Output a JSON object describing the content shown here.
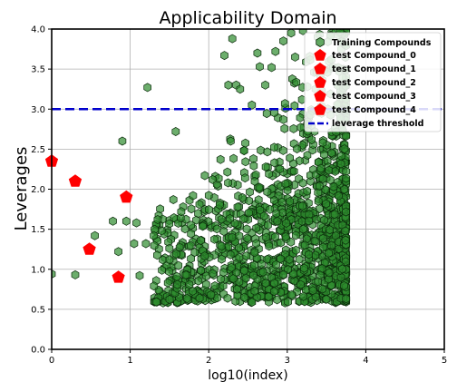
{
  "chart_data": {
    "type": "scatter",
    "title": "Applicability Domain",
    "xlabel": "log10(index)",
    "ylabel": "Leverages",
    "xlim": [
      0,
      5
    ],
    "ylim": [
      0,
      4
    ],
    "x_ticks": [
      "0",
      "1",
      "2",
      "3",
      "4",
      "5"
    ],
    "y_ticks": [
      "0.0",
      "0.5",
      "1.0",
      "1.5",
      "2.0",
      "2.5",
      "3.0",
      "3.5",
      "4.0"
    ],
    "grid": true,
    "legend_position": "top-right",
    "legend": [
      "Training Compounds",
      "test Compound_0",
      "test Compound_1",
      "test Compound_2",
      "test Compound_3",
      "test Compound_4",
      "leverage threshold"
    ],
    "threshold": {
      "name": "leverage threshold",
      "y": 3.0,
      "color": "#0000cc"
    },
    "training": {
      "name": "Training Compounds",
      "color": "#2e8b2e",
      "edge_color": "#0b2a0b",
      "sample_points": [
        [
          0.0,
          0.94
        ],
        [
          0.3,
          0.93
        ],
        [
          0.55,
          1.42
        ],
        [
          0.78,
          1.6
        ],
        [
          0.85,
          1.22
        ],
        [
          0.9,
          2.6
        ],
        [
          0.95,
          1.6
        ],
        [
          1.05,
          1.32
        ],
        [
          1.08,
          1.58
        ],
        [
          1.12,
          0.92
        ],
        [
          1.2,
          1.32
        ],
        [
          1.22,
          3.27
        ],
        [
          1.3,
          1.42
        ],
        [
          1.35,
          1.62
        ],
        [
          1.4,
          1.48
        ],
        [
          1.5,
          1.12
        ],
        [
          1.55,
          1.87
        ],
        [
          1.58,
          2.72
        ],
        [
          1.65,
          1.72
        ],
        [
          1.8,
          1.92
        ],
        [
          1.95,
          2.17
        ],
        [
          2.05,
          2.12
        ],
        [
          2.15,
          2.37
        ],
        [
          2.2,
          3.67
        ],
        [
          2.25,
          3.3
        ],
        [
          2.28,
          2.6
        ],
        [
          2.3,
          3.88
        ],
        [
          2.35,
          3.3
        ],
        [
          2.4,
          3.25
        ],
        [
          2.45,
          2.48
        ],
        [
          2.55,
          3.05
        ],
        [
          2.62,
          3.7
        ],
        [
          2.65,
          3.53
        ],
        [
          2.72,
          3.3
        ],
        [
          2.8,
          3.52
        ],
        [
          2.85,
          3.72
        ],
        [
          2.95,
          3.85
        ],
        [
          3.05,
          3.95
        ],
        [
          3.1,
          3.65
        ],
        [
          3.2,
          3.98
        ]
      ],
      "cluster": {
        "x_range": [
          1.3,
          3.75
        ],
        "y_range": [
          0.58,
          4.0
        ],
        "density_peak_x": 3.5,
        "count": 1400
      }
    },
    "test_compounds": [
      {
        "name": "test Compound_0",
        "x": 0.0,
        "y": 2.35,
        "color": "#ff0000"
      },
      {
        "name": "test Compound_1",
        "x": 0.3,
        "y": 2.1,
        "color": "#ff0000"
      },
      {
        "name": "test Compound_2",
        "x": 0.48,
        "y": 1.25,
        "color": "#ff0000"
      },
      {
        "name": "test Compound_3",
        "x": 0.85,
        "y": 0.9,
        "color": "#ff0000"
      },
      {
        "name": "test Compound_4",
        "x": 0.95,
        "y": 1.9,
        "color": "#ff0000"
      }
    ]
  }
}
